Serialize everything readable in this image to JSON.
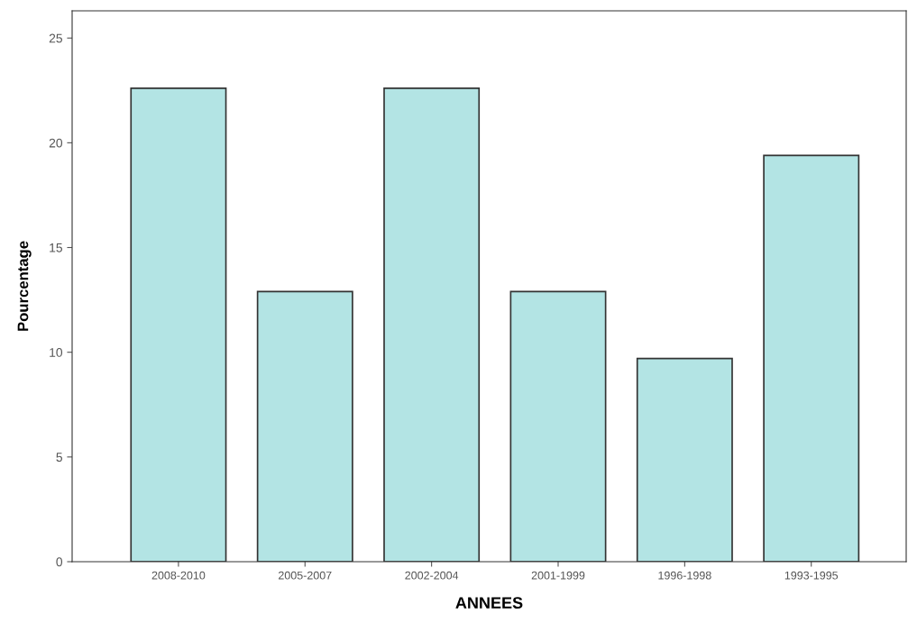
{
  "chart_data": {
    "type": "bar",
    "xlabel": "ANNEES",
    "ylabel": "Pourcentage",
    "categories": [
      "2008-2010",
      "2005-2007",
      "2002-2004",
      "2001-1999",
      "1996-1998",
      "1993-1995"
    ],
    "values": [
      22.6,
      12.9,
      22.6,
      12.9,
      9.7,
      19.4
    ],
    "color": "#b3e4e4",
    "ylim": [
      0,
      26.3
    ],
    "yticks": [
      0,
      5,
      10,
      15,
      20,
      25
    ],
    "grid": false
  }
}
